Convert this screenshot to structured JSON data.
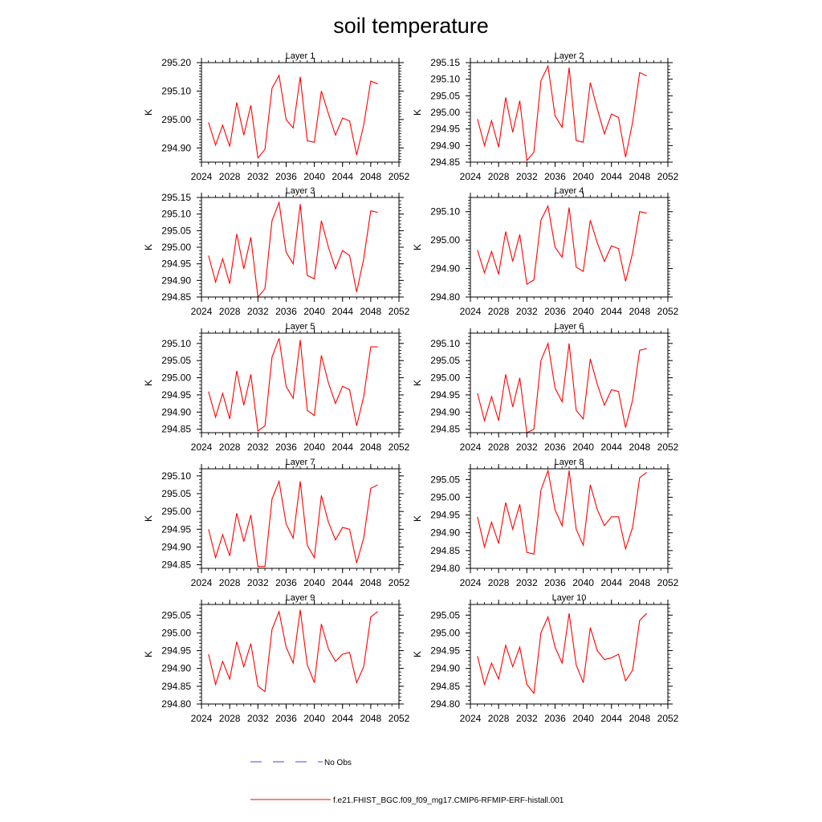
{
  "figure": {
    "title": "soil temperature",
    "colors": {
      "model": "#ff0000",
      "obs": "#4a4ae0",
      "axis": "#000000"
    }
  },
  "legend": {
    "obs_label": "No Obs",
    "model_label": "f.e21.FHIST_BGC.f09_f09_mg17.CMIP6-RFMIP-ERF-histall.001"
  },
  "chart_data": [
    {
      "type": "line",
      "title": "Layer 1",
      "xlabel": "",
      "ylabel": "K",
      "xlim": [
        2024,
        2052
      ],
      "ylim": [
        294.85,
        295.2
      ],
      "xticks": [
        2024,
        2028,
        2032,
        2036,
        2040,
        2044,
        2048,
        2052
      ],
      "yticks": [
        "294.90",
        "295.00",
        "295.10",
        "295.20"
      ],
      "x": [
        2025,
        2026,
        2027,
        2028,
        2029,
        2030,
        2031,
        2032,
        2033,
        2034,
        2035,
        2036,
        2037,
        2038,
        2039,
        2040,
        2041,
        2042,
        2043,
        2044,
        2045,
        2046,
        2047,
        2048,
        2049
      ],
      "series": [
        {
          "values": [
            294.99,
            294.91,
            294.98,
            294.905,
            295.06,
            294.945,
            295.05,
            294.865,
            294.895,
            295.11,
            295.155,
            295.0,
            294.97,
            295.15,
            294.925,
            294.92,
            295.1,
            295.02,
            294.945,
            295.005,
            294.995,
            294.875,
            294.98,
            295.135,
            295.125
          ]
        }
      ]
    },
    {
      "type": "line",
      "title": "Layer 2",
      "xlabel": "",
      "ylabel": "K",
      "xlim": [
        2024,
        2052
      ],
      "ylim": [
        294.85,
        295.15
      ],
      "xticks": [
        2024,
        2028,
        2032,
        2036,
        2040,
        2044,
        2048,
        2052
      ],
      "yticks": [
        "294.85",
        "294.90",
        "294.95",
        "295.00",
        "295.05",
        "295.10",
        "295.15"
      ],
      "x": [
        2025,
        2026,
        2027,
        2028,
        2029,
        2030,
        2031,
        2032,
        2033,
        2034,
        2035,
        2036,
        2037,
        2038,
        2039,
        2040,
        2041,
        2042,
        2043,
        2044,
        2045,
        2046,
        2047,
        2048,
        2049
      ],
      "series": [
        {
          "values": [
            294.98,
            294.9,
            294.975,
            294.895,
            295.045,
            294.94,
            295.035,
            294.855,
            294.88,
            295.095,
            295.14,
            294.99,
            294.955,
            295.135,
            294.915,
            294.91,
            295.09,
            295.01,
            294.935,
            294.995,
            294.985,
            294.865,
            294.97,
            295.12,
            295.11
          ]
        }
      ]
    },
    {
      "type": "line",
      "title": "Layer 3",
      "xlabel": "",
      "ylabel": "K",
      "xlim": [
        2024,
        2052
      ],
      "ylim": [
        294.85,
        295.15
      ],
      "xticks": [
        2024,
        2028,
        2032,
        2036,
        2040,
        2044,
        2048,
        2052
      ],
      "yticks": [
        "294.85",
        "294.90",
        "294.95",
        "295.00",
        "295.05",
        "295.10",
        "295.15"
      ],
      "x": [
        2025,
        2026,
        2027,
        2028,
        2029,
        2030,
        2031,
        2032,
        2033,
        2034,
        2035,
        2036,
        2037,
        2038,
        2039,
        2040,
        2041,
        2042,
        2043,
        2044,
        2045,
        2046,
        2047,
        2048,
        2049
      ],
      "series": [
        {
          "values": [
            294.975,
            294.895,
            294.965,
            294.89,
            295.04,
            294.935,
            295.03,
            294.85,
            294.875,
            295.08,
            295.135,
            294.985,
            294.95,
            295.13,
            294.915,
            294.905,
            295.08,
            295.0,
            294.935,
            294.99,
            294.975,
            294.865,
            294.965,
            295.11,
            295.105
          ]
        }
      ]
    },
    {
      "type": "line",
      "title": "Layer 4",
      "xlabel": "",
      "ylabel": "K",
      "xlim": [
        2024,
        2052
      ],
      "ylim": [
        294.8,
        295.15
      ],
      "xticks": [
        2024,
        2028,
        2032,
        2036,
        2040,
        2044,
        2048,
        2052
      ],
      "yticks": [
        "294.80",
        "294.90",
        "295.00",
        "295.10"
      ],
      "x": [
        2025,
        2026,
        2027,
        2028,
        2029,
        2030,
        2031,
        2032,
        2033,
        2034,
        2035,
        2036,
        2037,
        2038,
        2039,
        2040,
        2041,
        2042,
        2043,
        2044,
        2045,
        2046,
        2047,
        2048,
        2049
      ],
      "series": [
        {
          "values": [
            294.965,
            294.885,
            294.96,
            294.88,
            295.03,
            294.925,
            295.02,
            294.845,
            294.86,
            295.07,
            295.12,
            294.975,
            294.94,
            295.115,
            294.905,
            294.89,
            295.07,
            294.99,
            294.925,
            294.98,
            294.97,
            294.855,
            294.955,
            295.1,
            295.095
          ]
        }
      ]
    },
    {
      "type": "line",
      "title": "Layer 5",
      "xlabel": "",
      "ylabel": "K",
      "xlim": [
        2024,
        2052
      ],
      "ylim": [
        294.84,
        295.13
      ],
      "xticks": [
        2024,
        2028,
        2032,
        2036,
        2040,
        2044,
        2048,
        2052
      ],
      "yticks": [
        "294.85",
        "294.90",
        "294.95",
        "295.00",
        "295.05",
        "295.10"
      ],
      "x": [
        2025,
        2026,
        2027,
        2028,
        2029,
        2030,
        2031,
        2032,
        2033,
        2034,
        2035,
        2036,
        2037,
        2038,
        2039,
        2040,
        2041,
        2042,
        2043,
        2044,
        2045,
        2046,
        2047,
        2048,
        2049
      ],
      "series": [
        {
          "values": [
            294.96,
            294.885,
            294.955,
            294.88,
            295.02,
            294.92,
            295.01,
            294.845,
            294.86,
            295.06,
            295.115,
            294.975,
            294.94,
            295.11,
            294.905,
            294.89,
            295.065,
            294.985,
            294.925,
            294.975,
            294.965,
            294.86,
            294.945,
            295.09,
            295.09
          ]
        }
      ]
    },
    {
      "type": "line",
      "title": "Layer 6",
      "xlabel": "",
      "ylabel": "K",
      "xlim": [
        2024,
        2052
      ],
      "ylim": [
        294.84,
        295.13
      ],
      "xticks": [
        2024,
        2028,
        2032,
        2036,
        2040,
        2044,
        2048,
        2052
      ],
      "yticks": [
        "294.85",
        "294.90",
        "294.95",
        "295.00",
        "295.05",
        "295.10"
      ],
      "x": [
        2025,
        2026,
        2027,
        2028,
        2029,
        2030,
        2031,
        2032,
        2033,
        2034,
        2035,
        2036,
        2037,
        2038,
        2039,
        2040,
        2041,
        2042,
        2043,
        2044,
        2045,
        2046,
        2047,
        2048,
        2049
      ],
      "series": [
        {
          "values": [
            294.955,
            294.875,
            294.945,
            294.875,
            295.01,
            294.915,
            295.0,
            294.84,
            294.85,
            295.05,
            295.1,
            294.97,
            294.93,
            295.1,
            294.905,
            294.88,
            295.055,
            294.98,
            294.92,
            294.965,
            294.96,
            294.855,
            294.935,
            295.08,
            295.085
          ]
        }
      ]
    },
    {
      "type": "line",
      "title": "Layer 7",
      "xlabel": "",
      "ylabel": "K",
      "xlim": [
        2024,
        2052
      ],
      "ylim": [
        294.84,
        295.12
      ],
      "xticks": [
        2024,
        2028,
        2032,
        2036,
        2040,
        2044,
        2048,
        2052
      ],
      "yticks": [
        "294.85",
        "294.90",
        "294.95",
        "295.00",
        "295.05",
        "295.10"
      ],
      "x": [
        2025,
        2026,
        2027,
        2028,
        2029,
        2030,
        2031,
        2032,
        2033,
        2034,
        2035,
        2036,
        2037,
        2038,
        2039,
        2040,
        2041,
        2042,
        2043,
        2044,
        2045,
        2046,
        2047,
        2048,
        2049
      ],
      "series": [
        {
          "values": [
            294.95,
            294.87,
            294.935,
            294.875,
            294.995,
            294.915,
            294.99,
            294.845,
            294.845,
            295.035,
            295.085,
            294.965,
            294.925,
            295.085,
            294.905,
            294.87,
            295.045,
            294.97,
            294.92,
            294.955,
            294.95,
            294.855,
            294.925,
            295.065,
            295.075
          ]
        }
      ]
    },
    {
      "type": "line",
      "title": "Layer 8",
      "xlabel": "",
      "ylabel": "K",
      "xlim": [
        2024,
        2052
      ],
      "ylim": [
        294.8,
        295.08
      ],
      "xticks": [
        2024,
        2028,
        2032,
        2036,
        2040,
        2044,
        2048,
        2052
      ],
      "yticks": [
        "294.80",
        "294.85",
        "294.90",
        "294.95",
        "295.00",
        "295.05"
      ],
      "x": [
        2025,
        2026,
        2027,
        2028,
        2029,
        2030,
        2031,
        2032,
        2033,
        2034,
        2035,
        2036,
        2037,
        2038,
        2039,
        2040,
        2041,
        2042,
        2043,
        2044,
        2045,
        2046,
        2047,
        2048,
        2049
      ],
      "series": [
        {
          "values": [
            294.945,
            294.86,
            294.93,
            294.87,
            294.985,
            294.91,
            294.98,
            294.845,
            294.84,
            295.02,
            295.075,
            294.965,
            294.92,
            295.075,
            294.91,
            294.865,
            295.035,
            294.965,
            294.92,
            294.945,
            294.945,
            294.855,
            294.915,
            295.055,
            295.07
          ]
        }
      ]
    },
    {
      "type": "line",
      "title": "Layer 9",
      "xlabel": "",
      "ylabel": "K",
      "xlim": [
        2024,
        2052
      ],
      "ylim": [
        294.8,
        295.08
      ],
      "xticks": [
        2024,
        2028,
        2032,
        2036,
        2040,
        2044,
        2048,
        2052
      ],
      "yticks": [
        "294.80",
        "294.85",
        "294.90",
        "294.95",
        "295.00",
        "295.05"
      ],
      "x": [
        2025,
        2026,
        2027,
        2028,
        2029,
        2030,
        2031,
        2032,
        2033,
        2034,
        2035,
        2036,
        2037,
        2038,
        2039,
        2040,
        2041,
        2042,
        2043,
        2044,
        2045,
        2046,
        2047,
        2048,
        2049
      ],
      "series": [
        {
          "values": [
            294.94,
            294.855,
            294.92,
            294.87,
            294.975,
            294.905,
            294.97,
            294.85,
            294.835,
            295.01,
            295.06,
            294.96,
            294.915,
            295.065,
            294.91,
            294.86,
            295.025,
            294.955,
            294.92,
            294.94,
            294.945,
            294.86,
            294.905,
            295.045,
            295.06
          ]
        }
      ]
    },
    {
      "type": "line",
      "title": "Layer 10",
      "xlabel": "",
      "ylabel": "K",
      "xlim": [
        2024,
        2052
      ],
      "ylim": [
        294.8,
        295.08
      ],
      "xticks": [
        2024,
        2028,
        2032,
        2036,
        2040,
        2044,
        2048,
        2052
      ],
      "yticks": [
        "294.80",
        "294.85",
        "294.90",
        "294.95",
        "295.00",
        "295.05"
      ],
      "x": [
        2025,
        2026,
        2027,
        2028,
        2029,
        2030,
        2031,
        2032,
        2033,
        2034,
        2035,
        2036,
        2037,
        2038,
        2039,
        2040,
        2041,
        2042,
        2043,
        2044,
        2045,
        2046,
        2047,
        2048,
        2049
      ],
      "series": [
        {
          "values": [
            294.935,
            294.855,
            294.915,
            294.87,
            294.965,
            294.905,
            294.96,
            294.855,
            294.83,
            295.0,
            295.045,
            294.96,
            294.915,
            295.055,
            294.91,
            294.86,
            295.015,
            294.95,
            294.925,
            294.93,
            294.94,
            294.865,
            294.895,
            295.035,
            295.055
          ]
        }
      ]
    }
  ]
}
